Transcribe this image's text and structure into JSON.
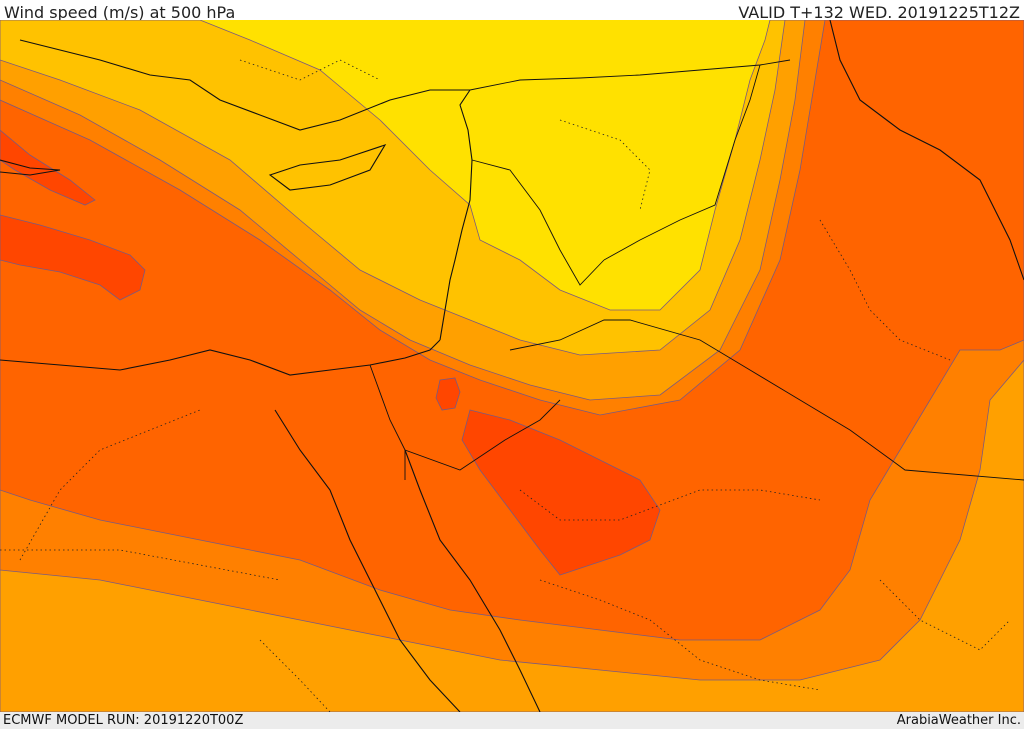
{
  "header": {
    "title": "Wind speed (m/s) at 500 hPa",
    "valid": "VALID T+132 WED. 20191225T12Z"
  },
  "footer": {
    "model_run": "ECMWF MODEL RUN: 20191220T00Z",
    "credit": "ArabiaWeather Inc."
  },
  "colors": {
    "level1": "#ffe100",
    "level2": "#ffc200",
    "level3": "#ffa000",
    "level4": "#ff8000",
    "level5": "#ff6400",
    "level6": "#ff4600",
    "contour": "#7a5a80",
    "border": "#111111"
  }
}
